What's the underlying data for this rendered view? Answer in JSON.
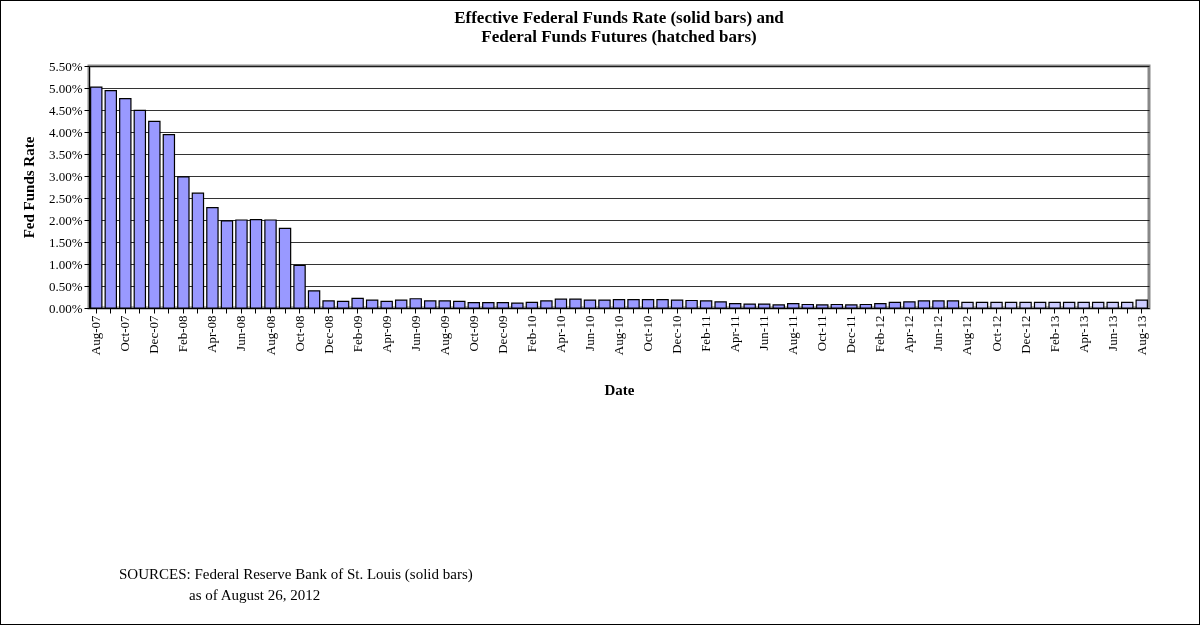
{
  "chart_data": {
    "type": "bar",
    "title": [
      "Effective Federal Funds Rate (solid bars) and",
      "Federal Funds Futures (hatched bars)"
    ],
    "xlabel": "Date",
    "ylabel": "Fed Funds Rate",
    "categories": [
      "Aug-07",
      null,
      "Oct-07",
      null,
      "Dec-07",
      null,
      "Feb-08",
      null,
      "Apr-08",
      null,
      "Jun-08",
      null,
      "Aug-08",
      null,
      "Oct-08",
      null,
      "Dec-08",
      null,
      "Feb-09",
      null,
      "Apr-09",
      null,
      "Jun-09",
      null,
      "Aug-09",
      null,
      "Oct-09",
      null,
      "Dec-09",
      null,
      "Feb-10",
      null,
      "Apr-10",
      null,
      "Jun-10",
      null,
      "Aug-10",
      null,
      "Oct-10",
      null,
      "Dec-10",
      null,
      "Feb-11",
      null,
      "Apr-11",
      null,
      "Jun-11",
      null,
      "Aug-11",
      null,
      "Oct-11",
      null,
      "Dec-11",
      null,
      "Feb-12",
      null,
      "Apr-12",
      null,
      "Jun-12",
      null,
      "Aug-12",
      null,
      "Oct-12",
      null,
      "Dec-12",
      null,
      "Feb-13",
      null,
      "Apr-13",
      null,
      "Jun-13",
      null,
      "Aug-13"
    ],
    "series": [
      {
        "color": "#9999ff",
        "values": [
          5.02,
          4.94,
          4.76,
          4.49,
          4.24,
          3.94,
          2.98,
          2.61,
          2.28,
          1.98,
          2.0,
          2.01,
          2.0,
          1.81,
          0.97,
          0.39,
          0.16,
          0.15,
          0.22,
          0.18,
          0.15,
          0.18,
          0.21,
          0.16,
          0.16,
          0.15,
          0.12,
          0.12,
          0.12,
          0.11,
          0.13,
          0.16,
          0.2,
          0.2,
          0.18,
          0.18,
          0.19,
          0.19,
          0.19,
          0.19,
          0.18,
          0.17,
          0.16,
          0.14,
          0.1,
          0.09,
          0.09,
          0.07,
          0.1,
          0.08,
          0.07,
          0.08,
          0.07,
          0.08,
          0.1,
          0.13,
          0.14,
          0.16,
          0.16,
          0.16,
          null,
          null,
          null,
          null,
          null,
          null,
          null,
          null,
          null,
          null,
          null,
          null,
          null
        ]
      },
      {
        "color": "#ccccff",
        "values": [
          null,
          null,
          null,
          null,
          null,
          null,
          null,
          null,
          null,
          null,
          null,
          null,
          null,
          null,
          null,
          null,
          null,
          null,
          null,
          null,
          null,
          null,
          null,
          null,
          null,
          null,
          null,
          null,
          null,
          null,
          null,
          null,
          null,
          null,
          null,
          null,
          null,
          null,
          null,
          null,
          null,
          null,
          null,
          null,
          null,
          null,
          null,
          null,
          null,
          null,
          null,
          null,
          null,
          null,
          null,
          null,
          null,
          null,
          null,
          null,
          0.13,
          0.13,
          0.13,
          0.13,
          0.13,
          0.13,
          0.13,
          0.13,
          0.13,
          0.13,
          0.13,
          0.13,
          0.18
        ]
      }
    ],
    "ylim": [
      0,
      5.5
    ],
    "yticks": [
      {
        "value": 0,
        "label": "0.00%"
      },
      {
        "value": 0.5,
        "label": "0.50%"
      },
      {
        "value": 1,
        "label": "1.00%"
      },
      {
        "value": 1.5,
        "label": "1.50%"
      },
      {
        "value": 2,
        "label": "2.00%"
      },
      {
        "value": 2.5,
        "label": "2.50%"
      },
      {
        "value": 3,
        "label": "3.00%"
      },
      {
        "value": 3.5,
        "label": "3.50%"
      },
      {
        "value": 4,
        "label": "4.00%"
      },
      {
        "value": 4.5,
        "label": "4.50%"
      },
      {
        "value": 5,
        "label": "5.00%"
      },
      {
        "value": 5.5,
        "label": "5.50%"
      }
    ],
    "grid": "y",
    "legend": false,
    "annotations": [
      "SOURCES: Federal Reserve Bank of St. Louis (solid bars)",
      "as of August 26, 2012"
    ]
  }
}
